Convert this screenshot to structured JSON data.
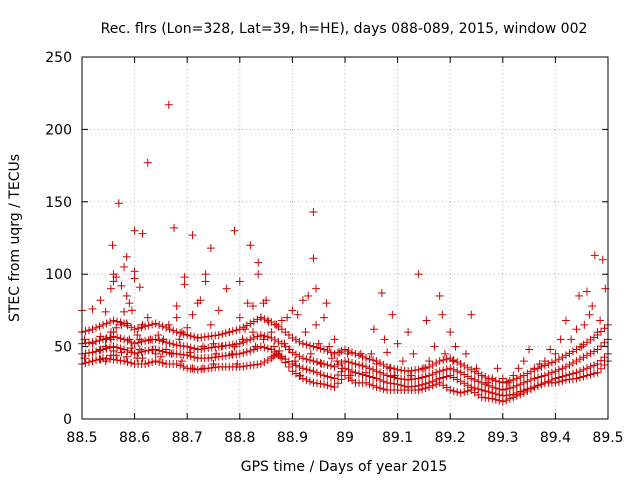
{
  "chart_data": {
    "type": "scatter",
    "title": "Rec. flrs (Lon=328, Lat=39, h=HE), days 088-089, 2015, window 002",
    "xlabel": "GPS time / Days of year 2015",
    "ylabel": "STEC from uqrg / TECUs",
    "xlim": [
      88.5,
      89.5
    ],
    "ylim": [
      0,
      250
    ],
    "xticks": [
      88.5,
      88.6,
      88.7,
      88.8,
      88.9,
      89.0,
      89.1,
      89.2,
      89.3,
      89.4,
      89.5
    ],
    "xtick_labels": [
      "88.5",
      "88.6",
      "88.7",
      "88.8",
      "88.9",
      "89",
      "89.1",
      "89.2",
      "89.3",
      "89.4",
      "89.5"
    ],
    "yticks": [
      0,
      50,
      100,
      150,
      200,
      250
    ],
    "ytick_labels": [
      "0",
      "50",
      "100",
      "150",
      "200",
      "250"
    ],
    "grid": true,
    "grid_style": "dotted",
    "marker": "+",
    "marker_color": "#cc0000",
    "points": [
      [
        88.5,
        75
      ],
      [
        88.505,
        55
      ],
      [
        88.505,
        42
      ],
      [
        88.52,
        76
      ],
      [
        88.52,
        52
      ],
      [
        88.52,
        46
      ],
      [
        88.52,
        40
      ],
      [
        88.535,
        82
      ],
      [
        88.535,
        57
      ],
      [
        88.535,
        48
      ],
      [
        88.535,
        41
      ],
      [
        88.545,
        74
      ],
      [
        88.545,
        55
      ],
      [
        88.545,
        50
      ],
      [
        88.545,
        40
      ],
      [
        88.555,
        90
      ],
      [
        88.555,
        60
      ],
      [
        88.555,
        55
      ],
      [
        88.555,
        44
      ],
      [
        88.558,
        120
      ],
      [
        88.56,
        100
      ],
      [
        88.56,
        95
      ],
      [
        88.56,
        60
      ],
      [
        88.56,
        47
      ],
      [
        88.565,
        98
      ],
      [
        88.565,
        63
      ],
      [
        88.565,
        44
      ],
      [
        88.57,
        149
      ],
      [
        88.575,
        92
      ],
      [
        88.575,
        65
      ],
      [
        88.575,
        46
      ],
      [
        88.58,
        105
      ],
      [
        88.58,
        74
      ],
      [
        88.585,
        112
      ],
      [
        88.585,
        85
      ],
      [
        88.585,
        66
      ],
      [
        88.585,
        43
      ],
      [
        88.59,
        80
      ],
      [
        88.59,
        55
      ],
      [
        88.595,
        75
      ],
      [
        88.595,
        49
      ],
      [
        88.6,
        130
      ],
      [
        88.6,
        102
      ],
      [
        88.6,
        97
      ],
      [
        88.605,
        58
      ],
      [
        88.605,
        42
      ],
      [
        88.61,
        91
      ],
      [
        88.61,
        55
      ],
      [
        88.61,
        48
      ],
      [
        88.615,
        128
      ],
      [
        88.615,
        65
      ],
      [
        88.615,
        42
      ],
      [
        88.625,
        177
      ],
      [
        88.625,
        70
      ],
      [
        88.63,
        55
      ],
      [
        88.635,
        48
      ],
      [
        88.64,
        45
      ],
      [
        88.645,
        58
      ],
      [
        88.65,
        43
      ],
      [
        88.655,
        55
      ],
      [
        88.66,
        48
      ],
      [
        88.665,
        217
      ],
      [
        88.665,
        65
      ],
      [
        88.67,
        45
      ],
      [
        88.675,
        132
      ],
      [
        88.68,
        78
      ],
      [
        88.68,
        70
      ],
      [
        88.685,
        55
      ],
      [
        88.69,
        60
      ],
      [
        88.69,
        40
      ],
      [
        88.695,
        98
      ],
      [
        88.695,
        93
      ],
      [
        88.7,
        63
      ],
      [
        88.705,
        46
      ],
      [
        88.71,
        127
      ],
      [
        88.71,
        72
      ],
      [
        88.71,
        35
      ],
      [
        88.72,
        80
      ],
      [
        88.72,
        56
      ],
      [
        88.725,
        82
      ],
      [
        88.73,
        50
      ],
      [
        88.73,
        35
      ],
      [
        88.735,
        100
      ],
      [
        88.735,
        95
      ],
      [
        88.745,
        118
      ],
      [
        88.745,
        65
      ],
      [
        88.75,
        52
      ],
      [
        88.75,
        38
      ],
      [
        88.755,
        45
      ],
      [
        88.76,
        75
      ],
      [
        88.765,
        50
      ],
      [
        88.775,
        90
      ],
      [
        88.78,
        60
      ],
      [
        88.785,
        45
      ],
      [
        88.79,
        130
      ],
      [
        88.79,
        50
      ],
      [
        88.795,
        38
      ],
      [
        88.8,
        95
      ],
      [
        88.8,
        70
      ],
      [
        88.805,
        55
      ],
      [
        88.81,
        62
      ],
      [
        88.815,
        80
      ],
      [
        88.82,
        120
      ],
      [
        88.825,
        78
      ],
      [
        88.825,
        60
      ],
      [
        88.83,
        50
      ],
      [
        88.835,
        108
      ],
      [
        88.835,
        100
      ],
      [
        88.84,
        70
      ],
      [
        88.845,
        80
      ],
      [
        88.845,
        55
      ],
      [
        88.85,
        82
      ],
      [
        88.855,
        67
      ],
      [
        88.86,
        60
      ],
      [
        88.865,
        50
      ],
      [
        88.87,
        65
      ],
      [
        88.875,
        47
      ],
      [
        88.88,
        68
      ],
      [
        88.885,
        52
      ],
      [
        88.89,
        70
      ],
      [
        88.895,
        48
      ],
      [
        88.9,
        75
      ],
      [
        88.905,
        40
      ],
      [
        88.91,
        72
      ],
      [
        88.915,
        30
      ],
      [
        88.92,
        82
      ],
      [
        88.925,
        60
      ],
      [
        88.93,
        85
      ],
      [
        88.935,
        45
      ],
      [
        88.94,
        143
      ],
      [
        88.94,
        111
      ],
      [
        88.945,
        90
      ],
      [
        88.945,
        65
      ],
      [
        88.95,
        52
      ],
      [
        88.955,
        38
      ],
      [
        88.96,
        70
      ],
      [
        88.965,
        80
      ],
      [
        88.97,
        50
      ],
      [
        88.975,
        42
      ],
      [
        88.98,
        55
      ],
      [
        88.985,
        40
      ],
      [
        88.99,
        46
      ],
      [
        88.995,
        35
      ],
      [
        89.005,
        45
      ],
      [
        89.01,
        30
      ],
      [
        89.02,
        38
      ],
      [
        89.03,
        45
      ],
      [
        89.04,
        32
      ],
      [
        89.05,
        45
      ],
      [
        89.055,
        62
      ],
      [
        89.06,
        38
      ],
      [
        89.07,
        87
      ],
      [
        89.075,
        55
      ],
      [
        89.08,
        46
      ],
      [
        89.085,
        35
      ],
      [
        89.09,
        72
      ],
      [
        89.095,
        30
      ],
      [
        89.1,
        52
      ],
      [
        89.11,
        40
      ],
      [
        89.12,
        60
      ],
      [
        89.125,
        30
      ],
      [
        89.13,
        45
      ],
      [
        89.14,
        100
      ],
      [
        89.15,
        35
      ],
      [
        89.155,
        68
      ],
      [
        89.16,
        40
      ],
      [
        89.17,
        50
      ],
      [
        89.18,
        85
      ],
      [
        89.185,
        72
      ],
      [
        89.19,
        45
      ],
      [
        89.2,
        60
      ],
      [
        89.205,
        40
      ],
      [
        89.21,
        50
      ],
      [
        89.22,
        38
      ],
      [
        89.23,
        45
      ],
      [
        89.24,
        72
      ],
      [
        89.25,
        35
      ],
      [
        89.26,
        30
      ],
      [
        89.27,
        25
      ],
      [
        89.28,
        28
      ],
      [
        89.29,
        35
      ],
      [
        89.3,
        28
      ],
      [
        89.31,
        25
      ],
      [
        89.32,
        30
      ],
      [
        89.33,
        35
      ],
      [
        89.34,
        40
      ],
      [
        89.35,
        48
      ],
      [
        89.36,
        35
      ],
      [
        89.37,
        38
      ],
      [
        89.38,
        40
      ],
      [
        89.39,
        48
      ],
      [
        89.4,
        45
      ],
      [
        89.41,
        55
      ],
      [
        89.42,
        68
      ],
      [
        89.43,
        55
      ],
      [
        89.44,
        62
      ],
      [
        89.445,
        85
      ],
      [
        89.45,
        50
      ],
      [
        89.455,
        65
      ],
      [
        89.46,
        88
      ],
      [
        89.465,
        72
      ],
      [
        89.47,
        78
      ],
      [
        89.475,
        113
      ],
      [
        89.48,
        60
      ],
      [
        89.485,
        68
      ],
      [
        89.49,
        110
      ],
      [
        89.495,
        90
      ]
    ],
    "series": [
      {
        "x": [
          88.5,
          88.52,
          88.54,
          88.56,
          88.58,
          88.6,
          88.62,
          88.64,
          88.66,
          88.68,
          88.7,
          88.72,
          88.74,
          88.76,
          88.78,
          88.8,
          88.82,
          88.84,
          88.86,
          88.87,
          88.88,
          88.9,
          88.92,
          88.94,
          88.96,
          88.98,
          89.0,
          89.02,
          89.04,
          89.06,
          89.08,
          89.1,
          89.12,
          89.14,
          89.16,
          89.18,
          89.2,
          89.22,
          89.24,
          89.26,
          89.28,
          89.3,
          89.32,
          89.34,
          89.36,
          89.38,
          89.4,
          89.42,
          89.44,
          89.46,
          89.48,
          89.5
        ],
        "y": [
          38,
          40,
          42,
          41,
          40,
          38,
          38,
          40,
          38,
          38,
          35,
          34,
          35,
          36,
          36,
          36,
          37,
          38,
          42,
          45,
          42,
          33,
          28,
          25,
          24,
          22,
          30,
          25,
          25,
          22,
          20,
          20,
          20,
          20,
          22,
          25,
          20,
          18,
          20,
          15,
          14,
          12,
          15,
          18,
          22,
          25,
          25,
          27,
          28,
          30,
          32,
          40
        ]
      },
      {
        "x": [
          88.5,
          88.52,
          88.54,
          88.56,
          88.58,
          88.6,
          88.62,
          88.64,
          88.66,
          88.68,
          88.7,
          88.72,
          88.74,
          88.76,
          88.78,
          88.8,
          88.82,
          88.84,
          88.86,
          88.88,
          88.9,
          88.92,
          88.94,
          88.96,
          88.98,
          89.0,
          89.02,
          89.04,
          89.06,
          89.08,
          89.1,
          89.12,
          89.14,
          89.16,
          89.18,
          89.2,
          89.22,
          89.24,
          89.26,
          89.28,
          89.3,
          89.32,
          89.34,
          89.36,
          89.38,
          89.4,
          89.42,
          89.44,
          89.46,
          89.48,
          89.5
        ],
        "y": [
          45,
          46,
          48,
          50,
          48,
          45,
          47,
          48,
          46,
          45,
          44,
          42,
          42,
          43,
          44,
          45,
          47,
          50,
          48,
          43,
          38,
          35,
          33,
          30,
          28,
          35,
          32,
          30,
          28,
          25,
          24,
          22,
          23,
          25,
          28,
          30,
          26,
          22,
          20,
          18,
          16,
          17,
          20,
          22,
          25,
          28,
          30,
          32,
          35,
          38,
          45
        ]
      },
      {
        "x": [
          88.5,
          88.52,
          88.54,
          88.56,
          88.58,
          88.6,
          88.62,
          88.64,
          88.66,
          88.68,
          88.7,
          88.72,
          88.74,
          88.76,
          88.78,
          88.8,
          88.82,
          88.84,
          88.86,
          88.88,
          88.9,
          88.92,
          88.94,
          88.96,
          88.98,
          89.0,
          89.02,
          89.04,
          89.06,
          89.08,
          89.1,
          89.12,
          89.14,
          89.16,
          89.18,
          89.2,
          89.22,
          89.24,
          89.26,
          89.28,
          89.3,
          89.32,
          89.34,
          89.36,
          89.38,
          89.4,
          89.42,
          89.44,
          89.46,
          89.48,
          89.5
        ],
        "y": [
          52,
          53,
          55,
          57,
          55,
          52,
          54,
          55,
          53,
          51,
          50,
          48,
          49,
          50,
          51,
          52,
          55,
          58,
          56,
          52,
          46,
          42,
          40,
          38,
          36,
          40,
          38,
          36,
          33,
          30,
          28,
          27,
          28,
          30,
          33,
          35,
          32,
          28,
          25,
          22,
          20,
          22,
          25,
          28,
          30,
          33,
          36,
          40,
          44,
          48,
          55
        ]
      },
      {
        "x": [
          88.5,
          88.52,
          88.54,
          88.56,
          88.58,
          88.6,
          88.62,
          88.64,
          88.66,
          88.68,
          88.7,
          88.72,
          88.74,
          88.76,
          88.78,
          88.8,
          88.82,
          88.84,
          88.86,
          88.88,
          88.9,
          88.92,
          88.94,
          88.96,
          88.98,
          89.0,
          89.02,
          89.04,
          89.06,
          89.08,
          89.1,
          89.12,
          89.14,
          89.16,
          89.18,
          89.2,
          89.22,
          89.24,
          89.26,
          89.28,
          89.3,
          89.32,
          89.34,
          89.36,
          89.38,
          89.4,
          89.42,
          89.44,
          89.46,
          89.48,
          89.5
        ],
        "y": [
          60,
          62,
          65,
          68,
          66,
          62,
          64,
          66,
          63,
          60,
          58,
          56,
          57,
          58,
          60,
          62,
          66,
          70,
          67,
          62,
          56,
          52,
          50,
          48,
          45,
          48,
          45,
          42,
          40,
          36,
          34,
          33,
          34,
          36,
          40,
          42,
          38,
          34,
          30,
          27,
          25,
          27,
          30,
          34,
          37,
          40,
          44,
          48,
          53,
          58,
          65
        ]
      }
    ]
  }
}
